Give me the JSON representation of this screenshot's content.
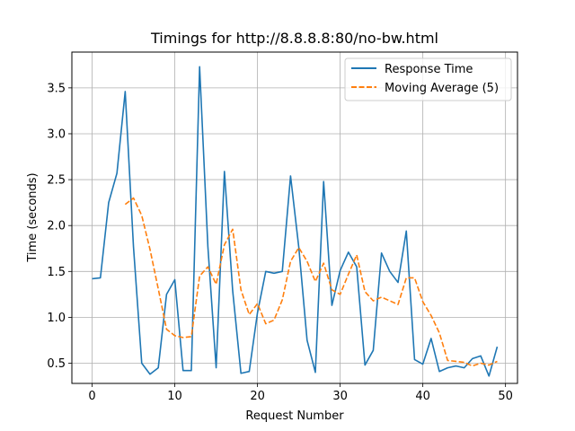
{
  "chart_data": {
    "type": "line",
    "title": "Timings for http://8.8.8.8:80/no-bw.html",
    "xlabel": "Request Number",
    "ylabel": "Time (seconds)",
    "xlim": [
      -2.45,
      51.45
    ],
    "ylim": [
      0.28,
      3.89
    ],
    "xticks": [
      0,
      10,
      20,
      30,
      40,
      50
    ],
    "yticks": [
      0.5,
      1.0,
      1.5,
      2.0,
      2.5,
      3.0,
      3.5
    ],
    "ytick_labels": [
      "0.5",
      "1.0",
      "1.5",
      "2.0",
      "2.5",
      "3.0",
      "3.5"
    ],
    "grid": true,
    "legend_position": "upper right",
    "series": [
      {
        "name": "Response Time",
        "color": "#1f77b4",
        "style": "solid",
        "x": [
          0,
          1,
          2,
          3,
          4,
          5,
          6,
          7,
          8,
          9,
          10,
          11,
          12,
          13,
          14,
          15,
          16,
          17,
          18,
          19,
          20,
          21,
          22,
          23,
          24,
          25,
          26,
          27,
          28,
          29,
          30,
          31,
          32,
          33,
          34,
          35,
          36,
          37,
          38,
          39,
          40,
          41,
          42,
          43,
          44,
          45,
          46,
          47,
          48,
          49
        ],
        "values": [
          1.42,
          1.43,
          2.25,
          2.57,
          3.46,
          1.77,
          0.5,
          0.38,
          0.45,
          1.25,
          1.41,
          0.42,
          0.42,
          3.73,
          1.77,
          0.45,
          2.59,
          1.29,
          0.39,
          0.41,
          1.05,
          1.5,
          1.48,
          1.5,
          2.54,
          1.76,
          0.75,
          0.4,
          2.48,
          1.13,
          1.51,
          1.71,
          1.55,
          0.48,
          0.64,
          1.7,
          1.5,
          1.38,
          1.94,
          0.54,
          0.49,
          0.77,
          0.41,
          0.45,
          0.47,
          0.45,
          0.55,
          0.58,
          0.36,
          0.68
        ]
      },
      {
        "name": "Moving Average (5)",
        "color": "#ff7f0e",
        "style": "dashed",
        "x": [
          4,
          5,
          6,
          7,
          8,
          9,
          10,
          11,
          12,
          13,
          14,
          15,
          16,
          17,
          18,
          19,
          20,
          21,
          22,
          23,
          24,
          25,
          26,
          27,
          28,
          29,
          30,
          31,
          32,
          33,
          34,
          35,
          36,
          37,
          38,
          39,
          40,
          41,
          42,
          43,
          44,
          45,
          46,
          47,
          48,
          49
        ],
        "values": [
          2.23,
          2.3,
          2.11,
          1.74,
          1.31,
          0.87,
          0.8,
          0.78,
          0.79,
          1.45,
          1.55,
          1.36,
          1.79,
          1.96,
          1.3,
          1.03,
          1.15,
          0.93,
          0.97,
          1.19,
          1.61,
          1.76,
          1.61,
          1.39,
          1.59,
          1.3,
          1.25,
          1.47,
          1.68,
          1.28,
          1.18,
          1.22,
          1.18,
          1.14,
          1.43,
          1.43,
          1.17,
          1.02,
          0.83,
          0.53,
          0.52,
          0.51,
          0.47,
          0.5,
          0.48,
          0.52
        ]
      }
    ]
  }
}
